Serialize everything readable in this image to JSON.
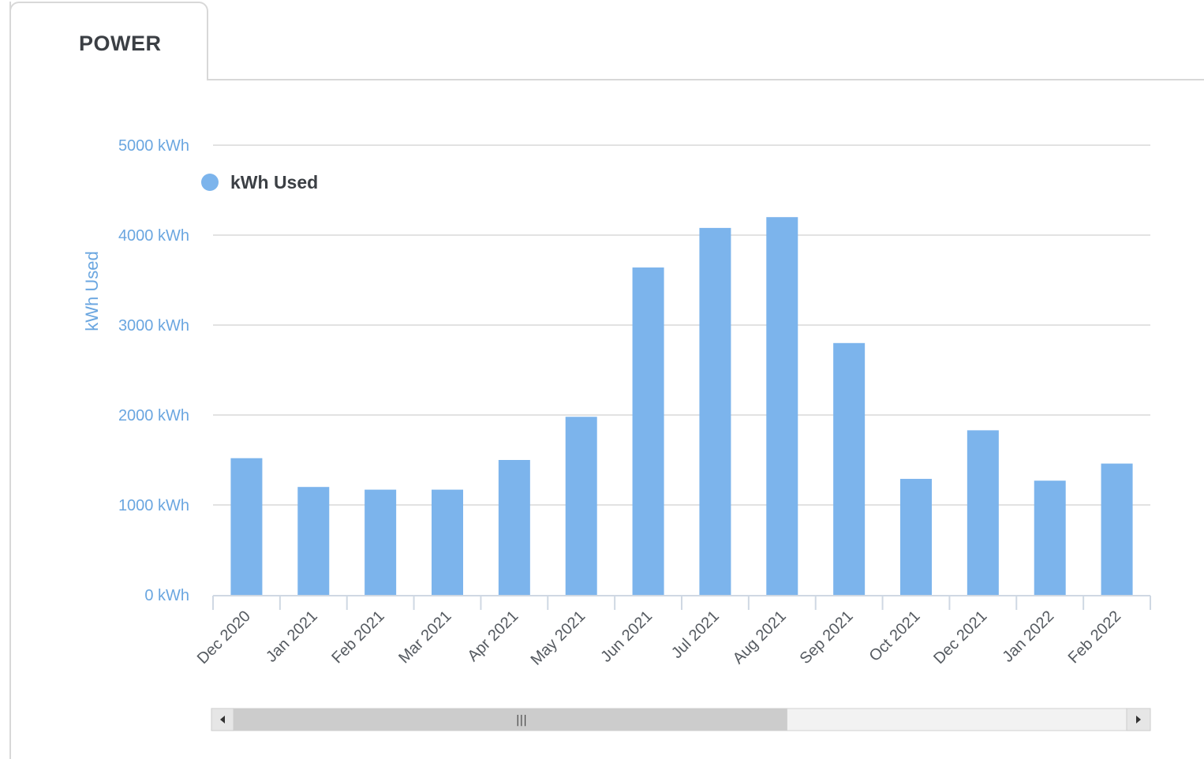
{
  "tab": {
    "label": "POWER"
  },
  "colors": {
    "bar": "#7cb4ec",
    "grid": "#e2e2e2",
    "axis_text": "#6aa6e0"
  },
  "chart_data": {
    "type": "bar",
    "ylabel": "kWh Used",
    "legend": {
      "position": "top-left",
      "entries": [
        "kWh Used"
      ]
    },
    "ylim": [
      0,
      5000
    ],
    "yticks": [
      0,
      1000,
      2000,
      3000,
      4000,
      5000
    ],
    "ytick_labels": [
      "0 kWh",
      "1000 kWh",
      "2000 kWh",
      "3000 kWh",
      "4000 kWh",
      "5000 kWh"
    ],
    "grid": true,
    "categories": [
      "Dec 2020",
      "Jan 2021",
      "Feb 2021",
      "Mar 2021",
      "Apr 2021",
      "May 2021",
      "Jun 2021",
      "Jul 2021",
      "Aug 2021",
      "Sep 2021",
      "Oct 2021",
      "Dec 2021",
      "Jan 2022",
      "Feb 2022"
    ],
    "series": [
      {
        "name": "kWh Used",
        "values": [
          1520,
          1200,
          1170,
          1170,
          1500,
          1980,
          3640,
          4080,
          4200,
          2800,
          1290,
          1830,
          1270,
          1460
        ]
      }
    ]
  },
  "scrollbar": {
    "thumb_fraction": 0.62
  }
}
